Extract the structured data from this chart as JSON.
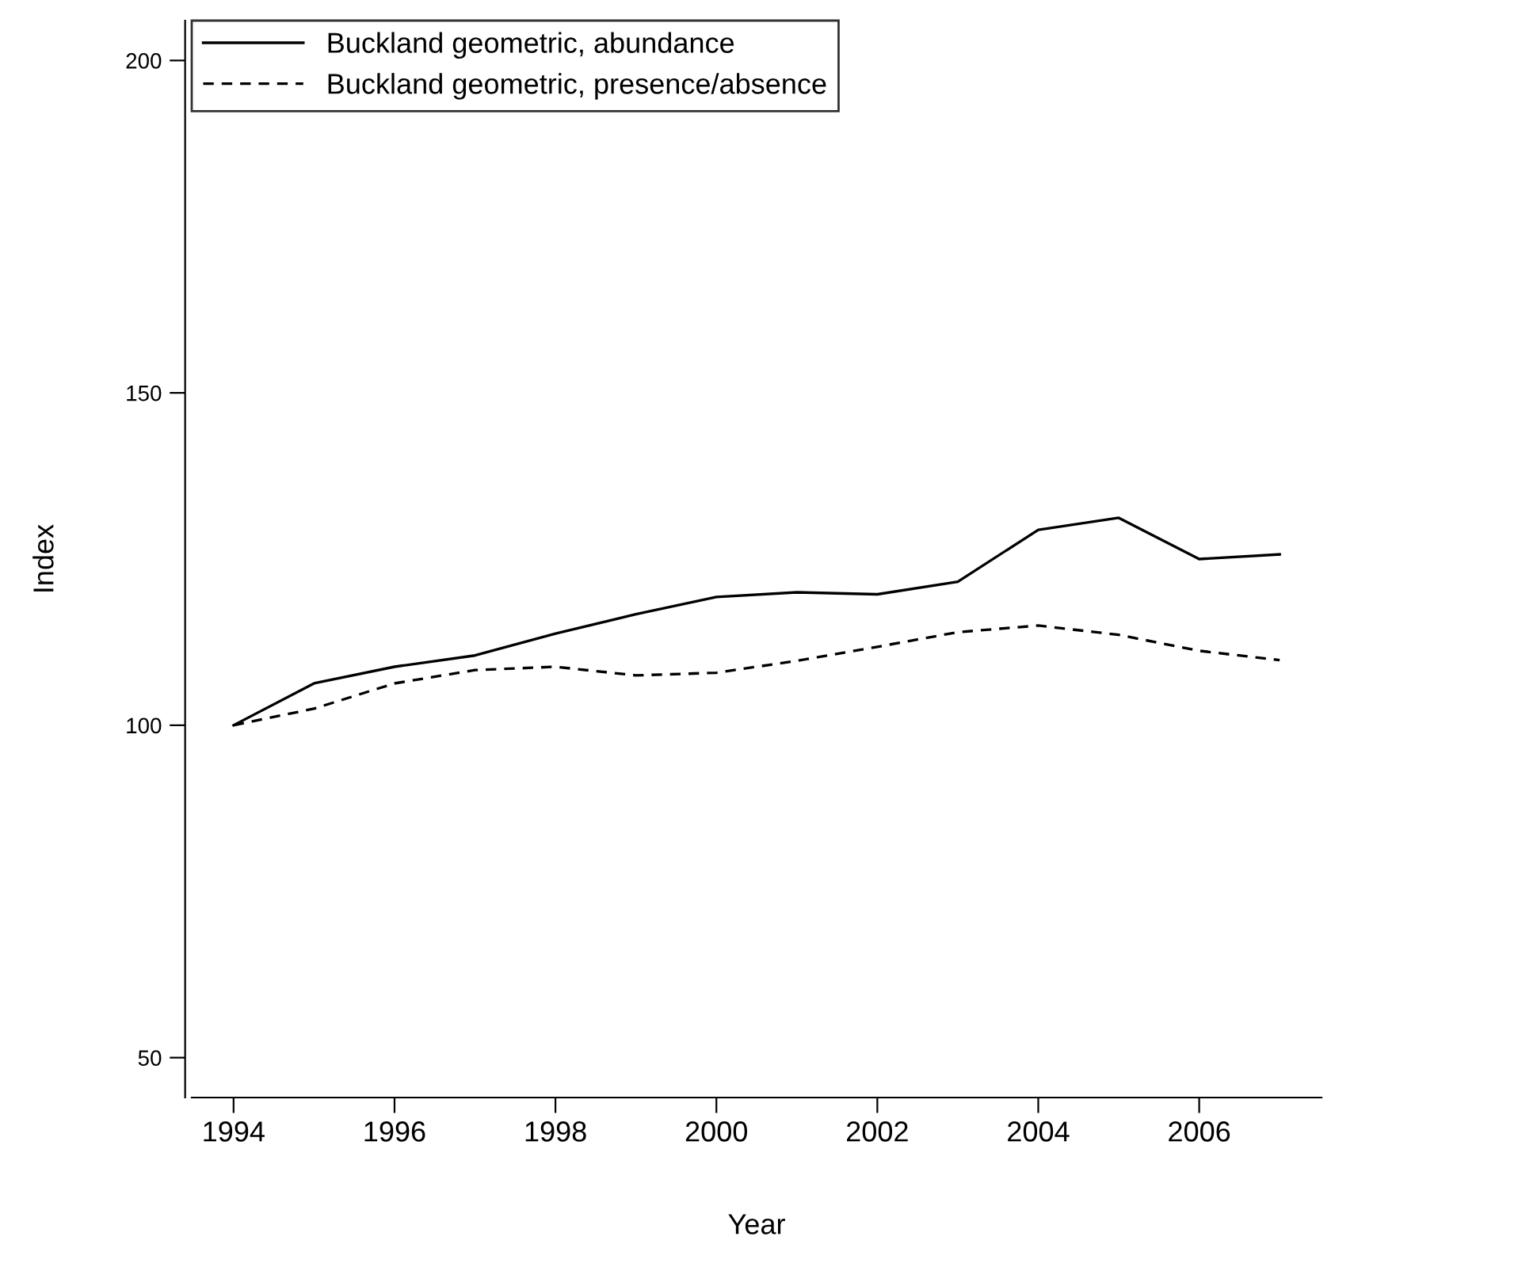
{
  "chart_data": {
    "type": "line",
    "xlabel": "Year",
    "ylabel": "Index",
    "x": [
      1994,
      1995,
      1996,
      1997,
      1998,
      1999,
      2000,
      2001,
      2002,
      2003,
      2004,
      2005,
      2006,
      2007
    ],
    "series": [
      {
        "name": "Buckland geometric, abundance",
        "color": "#000000",
        "line_style": "solid",
        "values": [
          100,
          106.3,
          108.8,
          110.5,
          113.8,
          116.7,
          119.3,
          120.0,
          119.7,
          121.6,
          129.4,
          131.2,
          125.0,
          125.7
        ]
      },
      {
        "name": "Buckland geometric, presence/absence",
        "color": "#000000",
        "line_style": "dashed",
        "values": [
          100,
          102.5,
          106.3,
          108.3,
          108.8,
          107.5,
          107.9,
          109.7,
          111.8,
          114.0,
          115.0,
          113.6,
          111.2,
          109.8
        ]
      }
    ],
    "xlim": [
      1993.48,
      2007.52
    ],
    "ylim": [
      44,
      206
    ],
    "xticks": [
      1994,
      1996,
      1998,
      2000,
      2002,
      2004,
      2006
    ],
    "yticks": [
      50,
      100,
      150,
      200
    ],
    "legend": "top left",
    "grid": false,
    "marker": "none"
  }
}
